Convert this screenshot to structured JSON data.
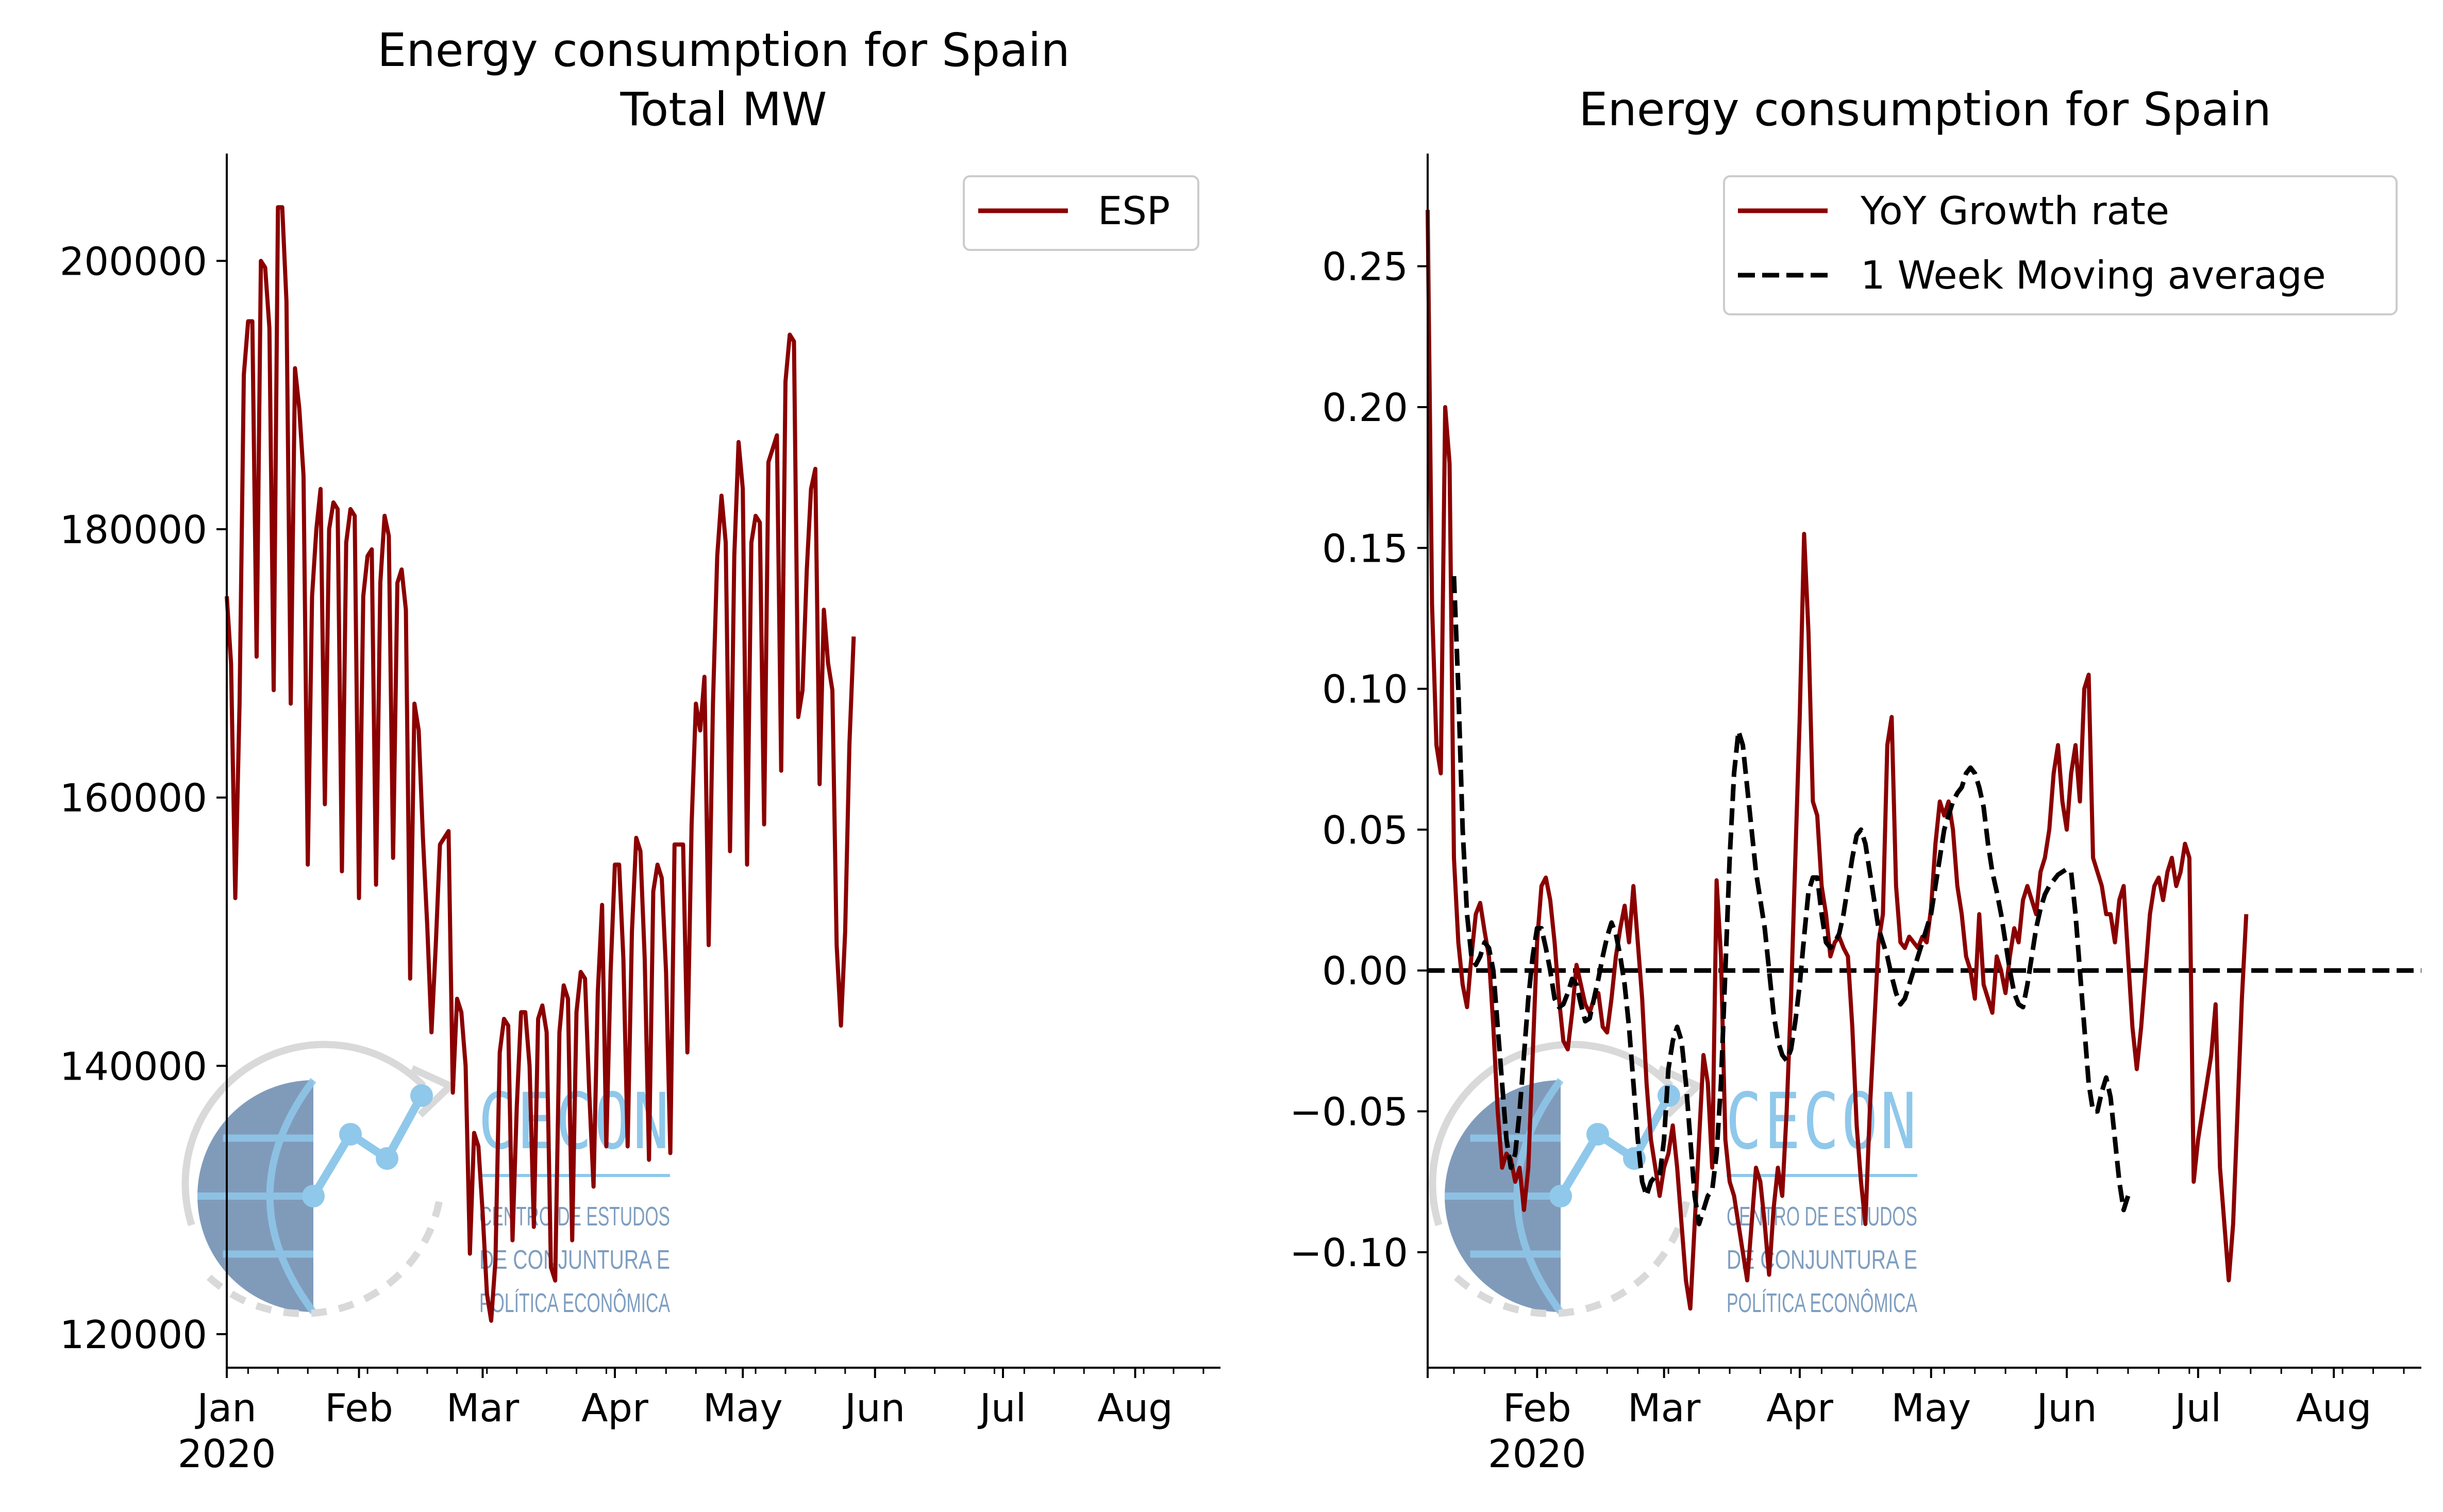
{
  "chart_data": [
    {
      "type": "line",
      "title": "Energy consumption for Spain\nTotal MW",
      "title_lines": [
        "Energy consumption for Spain",
        "Total MW"
      ],
      "x_axis": {
        "type": "date",
        "tick_labels": [
          "Jan",
          "Feb",
          "Mar",
          "Apr",
          "May",
          "Jun",
          "Jul",
          "Aug"
        ],
        "year_label": "2020",
        "range": [
          "2020-01-01",
          "2020-08-21"
        ]
      },
      "y_axis": {
        "ylim": [
          117500,
          208000
        ],
        "ticks": [
          120000,
          140000,
          160000,
          180000,
          200000
        ]
      },
      "grid": false,
      "legend": {
        "placement": "top-right",
        "entries": [
          "ESP"
        ]
      },
      "series": [
        {
          "name": "ESP",
          "color": "#8b0000",
          "start": "2020-01-01",
          "values": [
            175000,
            170000,
            152500,
            167000,
            191500,
            195500,
            195500,
            170500,
            200000,
            199500,
            195000,
            168000,
            204000,
            204000,
            197000,
            167000,
            192000,
            189000,
            184000,
            155000,
            175000,
            180000,
            183000,
            159500,
            180000,
            182000,
            181500,
            154500,
            179000,
            181500,
            181000,
            152500,
            175000,
            178000,
            178500,
            153500,
            176000,
            181000,
            179500,
            155500,
            176000,
            177000,
            174000,
            146500,
            167000,
            165000,
            157000,
            150500,
            142500,
            149000,
            156500,
            157000,
            157500,
            138000,
            145000,
            144000,
            140000,
            126000,
            135000,
            134000,
            129000,
            123000,
            121000,
            125500,
            141000,
            143500,
            143000,
            127000,
            137000,
            144000,
            144000,
            140000,
            128000,
            143500,
            144500,
            142500,
            125000,
            124000,
            142500,
            146000,
            145000,
            127000,
            144000,
            147000,
            146500,
            138000,
            131000,
            145500,
            152000,
            134000,
            147000,
            155000,
            155000,
            148000,
            134000,
            150000,
            157000,
            156000,
            148000,
            133000,
            153000,
            155000,
            154000,
            147000,
            133500,
            156500,
            156500,
            156500,
            141000,
            158000,
            167000,
            165000,
            169000,
            149000,
            167000,
            178000,
            182500,
            179000,
            156000,
            178000,
            186500,
            183000,
            155000,
            179000,
            181000,
            180500,
            158000,
            185000,
            186000,
            187000,
            162000,
            191000,
            194500,
            194000,
            166000,
            168000,
            177000,
            183000,
            184500,
            161000,
            174000,
            170000,
            168000,
            149000,
            143000,
            150000,
            164000,
            172000
          ]
        }
      ],
      "watermark": {
        "title": "CECON",
        "lines": [
          "CENTRO DE ESTUDOS",
          "DE CONJUNTURA E",
          "POLÍTICA ECONÔMICA"
        ]
      }
    },
    {
      "type": "line",
      "title": "Energy consumption for Spain",
      "x_axis": {
        "type": "date",
        "tick_labels": [
          "Feb",
          "Mar",
          "Apr",
          "May",
          "Jun",
          "Jul",
          "Aug"
        ],
        "year_label": "2020",
        "range": [
          "2020-01-07",
          "2020-08-21"
        ]
      },
      "y_axis": {
        "ylim": [
          -0.141,
          0.29
        ],
        "ticks": [
          -0.1,
          -0.05,
          0.0,
          0.05,
          0.1,
          0.15,
          0.2,
          0.25
        ]
      },
      "grid": false,
      "legend": {
        "placement": "top-right",
        "entries": [
          "YoY Growth rate",
          "1 Week Moving average"
        ]
      },
      "reference_line": {
        "y": 0.0,
        "style": "dashed",
        "color": "#000000"
      },
      "series": [
        {
          "name": "YoY Growth rate",
          "color": "#8b0000",
          "start": "2020-01-07",
          "values": [
            0.27,
            0.13,
            0.08,
            0.07,
            0.2,
            0.18,
            0.04,
            0.01,
            -0.005,
            -0.013,
            0.005,
            0.02,
            0.024,
            0.014,
            0.005,
            -0.02,
            -0.05,
            -0.07,
            -0.065,
            -0.067,
            -0.075,
            -0.07,
            -0.085,
            -0.07,
            -0.03,
            0.01,
            0.03,
            0.033,
            0.025,
            0.01,
            -0.01,
            -0.025,
            -0.028,
            -0.015,
            0.002,
            -0.005,
            -0.012,
            -0.015,
            -0.01,
            -0.008,
            -0.02,
            -0.022,
            -0.01,
            0.005,
            0.015,
            0.023,
            0.01,
            0.03,
            0.01,
            -0.01,
            -0.04,
            -0.06,
            -0.07,
            -0.08,
            -0.07,
            -0.065,
            -0.055,
            -0.07,
            -0.09,
            -0.11,
            -0.12,
            -0.09,
            -0.06,
            -0.03,
            -0.04,
            -0.07,
            0.032,
            0.005,
            -0.06,
            -0.075,
            -0.08,
            -0.09,
            -0.1,
            -0.11,
            -0.09,
            -0.07,
            -0.075,
            -0.09,
            -0.108,
            -0.085,
            -0.07,
            -0.08,
            -0.05,
            -0.01,
            0.04,
            0.09,
            0.155,
            0.12,
            0.06,
            0.055,
            0.03,
            0.02,
            0.005,
            0.01,
            0.012,
            0.008,
            0.005,
            -0.02,
            -0.055,
            -0.075,
            -0.09,
            -0.05,
            -0.02,
            0.01,
            0.02,
            0.08,
            0.09,
            0.03,
            0.01,
            0.008,
            0.012,
            0.01,
            0.008,
            0.012,
            0.01,
            0.022,
            0.045,
            0.06,
            0.055,
            0.06,
            0.05,
            0.03,
            0.02,
            0.005,
            0.0,
            -0.01,
            0.02,
            -0.005,
            -0.01,
            -0.015,
            0.005,
            0.0,
            -0.008,
            0.005,
            0.015,
            0.01,
            0.025,
            0.03,
            0.025,
            0.02,
            0.035,
            0.04,
            0.05,
            0.07,
            0.08,
            0.06,
            0.05,
            0.07,
            0.08,
            0.06,
            0.1,
            0.105,
            0.04,
            0.035,
            0.03,
            0.02,
            0.02,
            0.01,
            0.025,
            0.03,
            0.005,
            -0.02,
            -0.035,
            -0.02,
            0.0,
            0.02,
            0.03,
            0.033,
            0.025,
            0.035,
            0.04,
            0.03,
            0.035,
            0.045,
            0.04,
            -0.075,
            -0.06,
            -0.05,
            -0.04,
            -0.03,
            -0.012,
            -0.07,
            -0.09,
            -0.11,
            -0.09,
            -0.05,
            -0.01,
            0.02
          ],
          "plot_start_index": 0
        },
        {
          "name": "1 Week Moving average",
          "color": "#000000",
          "start": "2020-01-13",
          "values": [
            0.14,
            0.1,
            0.05,
            0.02,
            0.005,
            0.002,
            0.005,
            0.01,
            0.008,
            0.0,
            -0.02,
            -0.04,
            -0.06,
            -0.07,
            -0.065,
            -0.05,
            -0.03,
            -0.01,
            0.005,
            0.015,
            0.015,
            0.008,
            0.0,
            -0.01,
            -0.013,
            -0.012,
            -0.008,
            -0.003,
            -0.005,
            -0.012,
            -0.018,
            -0.017,
            -0.01,
            -0.003,
            0.005,
            0.012,
            0.017,
            0.013,
            0.005,
            -0.005,
            -0.02,
            -0.04,
            -0.06,
            -0.075,
            -0.08,
            -0.075,
            -0.073,
            -0.073,
            -0.06,
            -0.035,
            -0.025,
            -0.02,
            -0.025,
            -0.04,
            -0.06,
            -0.08,
            -0.09,
            -0.085,
            -0.08,
            -0.078,
            -0.065,
            -0.04,
            0.0,
            0.04,
            0.07,
            0.085,
            0.08,
            0.065,
            0.05,
            0.035,
            0.025,
            0.015,
            0.0,
            -0.015,
            -0.025,
            -0.03,
            -0.032,
            -0.028,
            -0.018,
            -0.005,
            0.012,
            0.028,
            0.033,
            0.033,
            0.02,
            0.01,
            0.008,
            0.01,
            0.013,
            0.02,
            0.03,
            0.04,
            0.048,
            0.05,
            0.045,
            0.035,
            0.025,
            0.015,
            0.01,
            0.005,
            -0.002,
            -0.008,
            -0.012,
            -0.01,
            -0.005,
            0.0,
            0.005,
            0.01,
            0.015,
            0.02,
            0.03,
            0.04,
            0.05,
            0.055,
            0.06,
            0.063,
            0.065,
            0.07,
            0.072,
            0.07,
            0.065,
            0.058,
            0.045,
            0.035,
            0.028,
            0.02,
            0.01,
            0.0,
            -0.008,
            -0.012,
            -0.013,
            -0.005,
            0.005,
            0.015,
            0.022,
            0.027,
            0.03,
            0.032,
            0.034,
            0.035,
            0.036,
            0.035,
            0.02,
            0.0,
            -0.02,
            -0.04,
            -0.05,
            -0.05,
            -0.043,
            -0.038,
            -0.045,
            -0.06,
            -0.075,
            -0.085,
            -0.08
          ]
        }
      ],
      "watermark": {
        "title": "CECON",
        "lines": [
          "CENTRO DE ESTUDOS",
          "DE CONJUNTURA E",
          "POLÍTICA ECONÔMICA"
        ]
      }
    }
  ]
}
